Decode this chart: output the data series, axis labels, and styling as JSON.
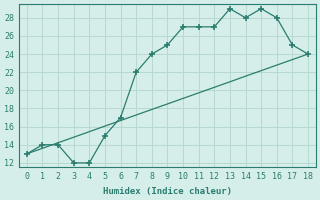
{
  "x": [
    0,
    1,
    2,
    3,
    4,
    5,
    6,
    7,
    8,
    9,
    10,
    11,
    12,
    13,
    14,
    15,
    16,
    17,
    18
  ],
  "y_curve": [
    13,
    14,
    14,
    12,
    12,
    15,
    17,
    22,
    24,
    25,
    27,
    27,
    27,
    29,
    28,
    29,
    28,
    25,
    24
  ],
  "y_line": [
    13,
    13.61,
    14.22,
    14.83,
    15.44,
    16.06,
    16.67,
    17.28,
    17.89,
    18.5,
    19.11,
    19.72,
    20.33,
    20.94,
    21.56,
    22.17,
    22.78,
    23.39,
    24
  ],
  "line_color": "#2a7d6e",
  "bg_color": "#d6eeea",
  "grid_color": "#b8d8d2",
  "xlabel": "Humidex (Indice chaleur)",
  "xlim": [
    -0.5,
    18.5
  ],
  "ylim": [
    11.5,
    29.5
  ],
  "xticks": [
    0,
    1,
    2,
    3,
    4,
    5,
    6,
    7,
    8,
    9,
    10,
    11,
    12,
    13,
    14,
    15,
    16,
    17,
    18
  ],
  "yticks": [
    12,
    14,
    16,
    18,
    20,
    22,
    24,
    26,
    28
  ],
  "label_fontsize": 6.5,
  "tick_fontsize": 6
}
